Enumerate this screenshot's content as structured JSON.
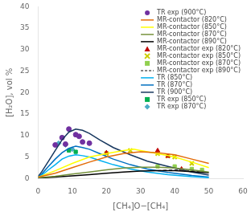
{
  "chart_data": {
    "type": "line",
    "xlabel": "[CH₄]O−[CH₄]",
    "ylabel": "[H₂O], vol %",
    "xlim": [
      0,
      60
    ],
    "ylim": [
      0,
      40
    ],
    "xticks": [
      0,
      10,
      20,
      30,
      40,
      50,
      60
    ],
    "yticks": [
      0,
      5,
      10,
      15,
      20,
      25,
      30,
      35,
      40
    ],
    "grid": false,
    "legend": "upper right",
    "series": [
      {
        "name": "TR exp (900°C)",
        "type": "scatter",
        "marker": "circle",
        "color": "#7030A0",
        "x": [
          5,
          7,
          8,
          9,
          11,
          12,
          13,
          15
        ],
        "values": [
          7.8,
          9.5,
          8.0,
          11.5,
          10.2,
          9.8,
          8.5,
          8.2
        ]
      },
      {
        "name": "MR-contactor (820°C)",
        "type": "line",
        "color": "#E36C09",
        "x": [
          0,
          5,
          10,
          15,
          20,
          25,
          30,
          35,
          40,
          45,
          50
        ],
        "values": [
          0.3,
          1.2,
          2.5,
          3.8,
          5.0,
          5.8,
          6.2,
          6.0,
          5.5,
          4.5,
          3.5
        ]
      },
      {
        "name": "MR-contactor (850°C)",
        "type": "line",
        "color": "#FFFF00",
        "x": [
          0,
          5,
          10,
          15,
          20,
          25,
          28,
          30,
          35,
          40,
          45,
          50
        ],
        "values": [
          0.3,
          1.8,
          3.5,
          5.0,
          5.8,
          6.5,
          6.8,
          6.5,
          5.8,
          5.0,
          3.8,
          2.5
        ]
      },
      {
        "name": "MR-contactor (870°C)",
        "type": "line",
        "color": "#76923C",
        "x": [
          0,
          5,
          10,
          15,
          20,
          25,
          30,
          35,
          40,
          45,
          50
        ],
        "values": [
          0.2,
          0.5,
          1.0,
          1.5,
          2.0,
          2.4,
          2.6,
          2.6,
          2.4,
          2.0,
          1.5
        ]
      },
      {
        "name": "MR-contactor (890°C)",
        "type": "line",
        "color": "#000000",
        "x": [
          0,
          5,
          10,
          15,
          20,
          25,
          30,
          35,
          40,
          45,
          50
        ],
        "values": [
          0.1,
          0.3,
          0.6,
          0.9,
          1.2,
          1.5,
          1.7,
          1.8,
          1.8,
          1.6,
          1.3
        ]
      },
      {
        "name": "MR-contactor exp (820°C)",
        "type": "scatter",
        "marker": "triangle",
        "color": "#C00000",
        "x": [
          20,
          35,
          38,
          42
        ],
        "values": [
          6.0,
          6.5,
          5.2,
          2.2
        ]
      },
      {
        "name": "MR-contactor exp (850°C)",
        "type": "scatter",
        "marker": "x",
        "color": "#CCCC00",
        "x": [
          20,
          27,
          35,
          38,
          40,
          45
        ],
        "values": [
          5.8,
          6.5,
          5.8,
          5.2,
          5.0,
          3.5
        ]
      },
      {
        "name": "MR-contactor exp (870°C)",
        "type": "scatter",
        "marker": "square",
        "color": "#92D050",
        "x": [
          35,
          40,
          45,
          48
        ],
        "values": [
          2.8,
          2.8,
          2.2,
          2.0
        ]
      },
      {
        "name": "MR-contactor exp (890°C)",
        "type": "line",
        "line_style": "dashed",
        "color": "#595959",
        "x": [
          35,
          40,
          45,
          48
        ],
        "values": [
          1.8,
          2.0,
          1.8,
          1.5
        ]
      },
      {
        "name": "TR (850°C)",
        "type": "line",
        "color": "#00B0F0",
        "x": [
          0,
          1,
          3,
          5,
          7,
          9,
          11,
          13,
          15,
          18,
          22,
          27,
          32,
          38,
          45,
          50
        ],
        "values": [
          0.3,
          0.7,
          2.0,
          3.2,
          4.5,
          5.2,
          5.5,
          5.3,
          5.0,
          4.2,
          3.2,
          2.2,
          1.5,
          0.9,
          0.4,
          0.2
        ]
      },
      {
        "name": "TR (870°C)",
        "type": "line",
        "color": "#0070C0",
        "x": [
          0,
          1,
          3,
          5,
          7,
          9,
          11,
          13,
          15,
          18,
          22,
          27,
          32,
          38,
          45,
          50
        ],
        "values": [
          0.3,
          1.0,
          2.8,
          4.5,
          6.0,
          7.0,
          7.5,
          7.2,
          6.8,
          5.8,
          4.5,
          3.2,
          2.2,
          1.4,
          0.7,
          0.3
        ]
      },
      {
        "name": "TR (900°C)",
        "type": "line",
        "color": "#17375E",
        "x": [
          0,
          1,
          3,
          5,
          7,
          9,
          11,
          13,
          15,
          18,
          22,
          27,
          32,
          38,
          45,
          50
        ],
        "values": [
          0.5,
          1.5,
          4.0,
          6.5,
          9.0,
          10.8,
          11.5,
          11.2,
          10.5,
          9.0,
          7.2,
          5.5,
          4.0,
          2.8,
          1.5,
          0.8
        ]
      },
      {
        "name": "TR exp (850°C)",
        "type": "scatter",
        "marker": "square",
        "color": "#00B050",
        "x": [
          7,
          9,
          11
        ],
        "values": [
          9.5,
          6.5,
          6.2
        ]
      },
      {
        "name": "TR exp (870°C)",
        "type": "scatter",
        "marker": "diamond",
        "color": "#4BACC6",
        "x": [
          6,
          8,
          10
        ],
        "values": [
          8.2,
          7.8,
          6.8
        ]
      }
    ]
  }
}
